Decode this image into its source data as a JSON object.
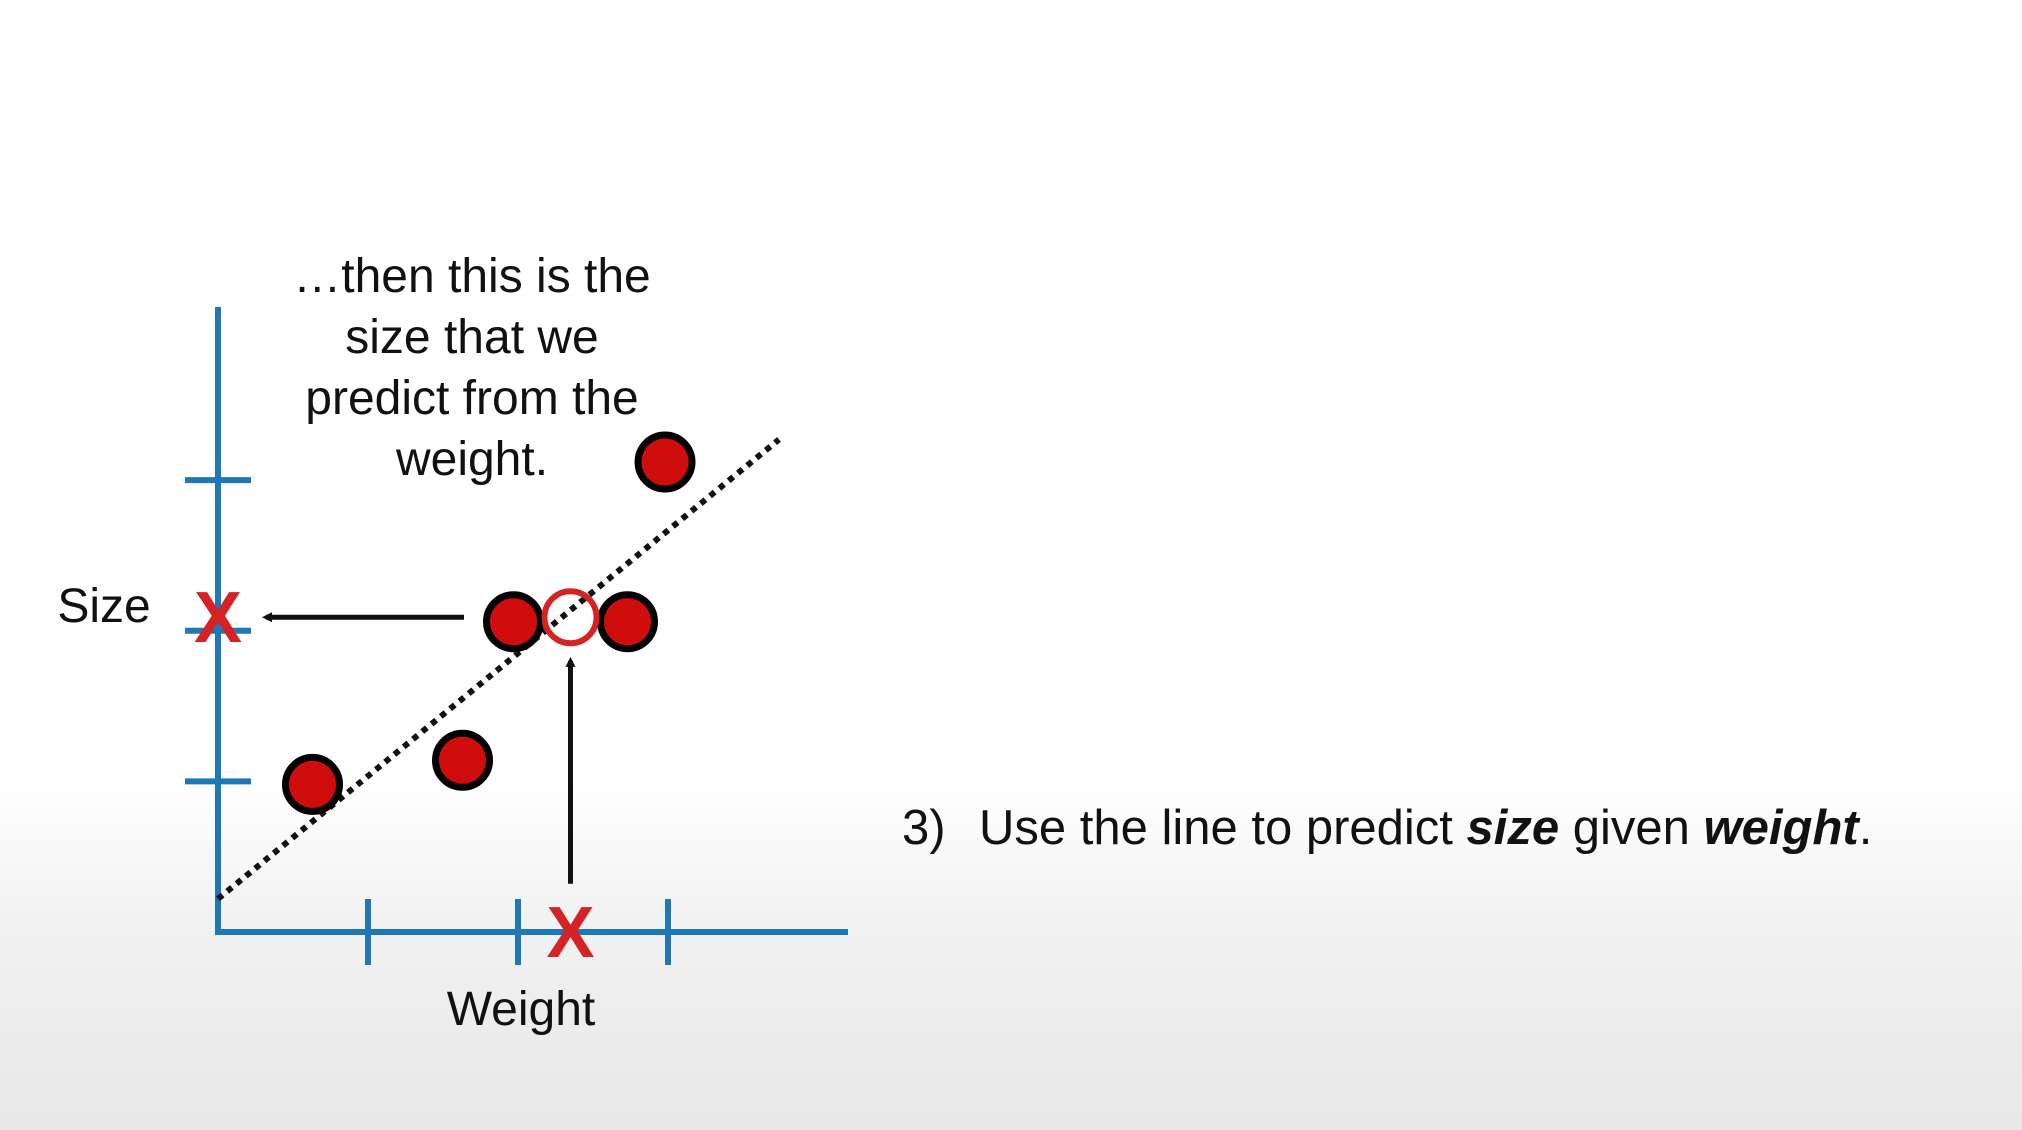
{
  "chart_data": {
    "type": "scatter",
    "xlabel": "Weight",
    "ylabel": "Size",
    "xlim": [
      0,
      3.6
    ],
    "ylim": [
      0,
      3.2
    ],
    "x_ticks": [
      1,
      2,
      3
    ],
    "y_ticks": [
      1,
      2,
      3
    ],
    "tick_labels_shown": false,
    "grid": false,
    "points": [
      {
        "x": 0.63,
        "y": 0.98
      },
      {
        "x": 1.63,
        "y": 1.14
      },
      {
        "x": 1.97,
        "y": 2.06
      },
      {
        "x": 2.73,
        "y": 2.06
      },
      {
        "x": 2.98,
        "y": 3.12
      }
    ],
    "fit_line": {
      "x": [
        0,
        3.74
      ],
      "y": [
        0.22,
        3.27
      ],
      "style": "dotted"
    },
    "predicted_point": {
      "x": 2.35,
      "y": 2.09,
      "style": "hollow-circle"
    },
    "x_marker": {
      "x": 2.35,
      "y": 0,
      "glyph": "X"
    },
    "y_marker": {
      "x": 0,
      "y": 2.09,
      "glyph": "X"
    },
    "arrows": [
      {
        "from": [
          2.35,
          0.32
        ],
        "to": [
          2.35,
          1.8
        ],
        "direction": "up"
      },
      {
        "from": [
          1.64,
          2.09
        ],
        "to": [
          0.32,
          2.09
        ],
        "direction": "left"
      }
    ],
    "colors": {
      "axis": "#1f77b4",
      "point": "#d00d0d",
      "marker": "#d42225",
      "line": "#111111"
    }
  },
  "annotation": {
    "lines": [
      "…then this is the",
      "size that we",
      "predict from the",
      "weight."
    ]
  },
  "step": {
    "number": "3)",
    "pre": "Use the line to predict ",
    "size": "size",
    "mid": " given ",
    "weight": "weight",
    "end": "."
  }
}
